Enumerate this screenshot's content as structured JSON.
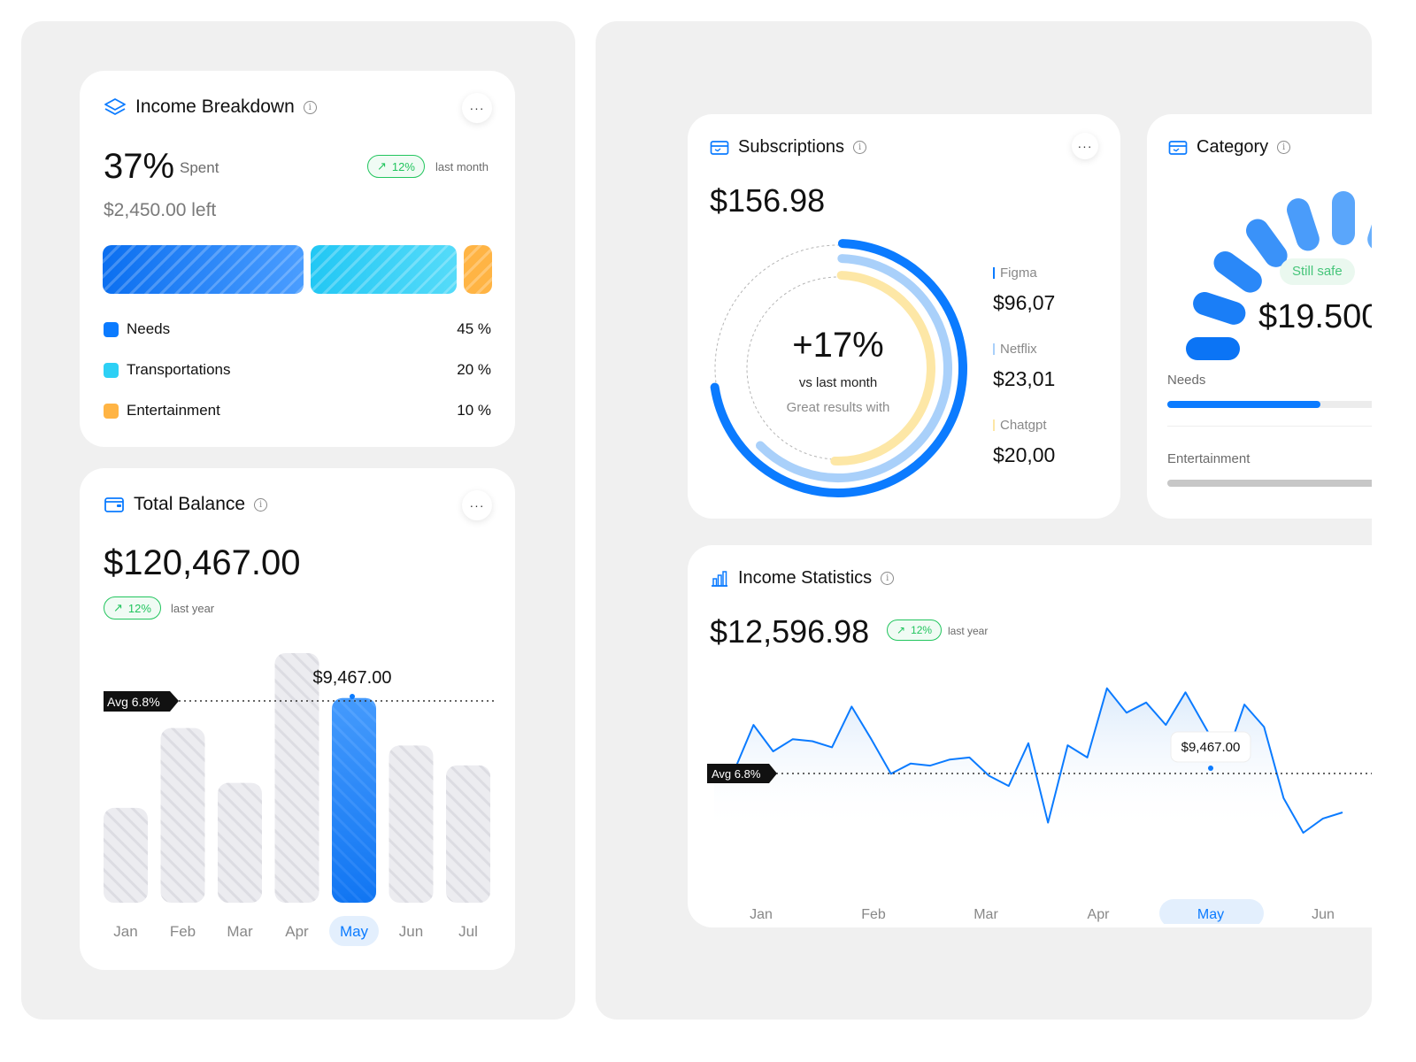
{
  "income_breakdown": {
    "title": "Income Breakdown",
    "percent": "37%",
    "percent_label": "Spent",
    "change": "12%",
    "change_period": "last month",
    "left_amount": "$2,450.00 left",
    "legend": [
      {
        "label": "Needs",
        "value": "45 %",
        "color": "#0b7bff"
      },
      {
        "label": "Transportations",
        "value": "20 %",
        "color": "#2dd0f5"
      },
      {
        "label": "Entertainment",
        "value": "10 %",
        "color": "#ffb444"
      }
    ]
  },
  "total_balance": {
    "title": "Total Balance",
    "amount": "$120,467.00",
    "change": "12%",
    "change_period": "last year",
    "avg_label": "Avg 6.8%",
    "tooltip": "$9,467.00",
    "chart_data": {
      "type": "bar",
      "categories": [
        "Jan",
        "Feb",
        "Mar",
        "Apr",
        "May",
        "Jun",
        "Jul"
      ],
      "values": [
        3.8,
        7.0,
        4.8,
        10.0,
        8.2,
        6.3,
        5.5
      ],
      "highlight": "May",
      "ylim": [
        0,
        10
      ]
    }
  },
  "subscriptions": {
    "title": "Subscriptions",
    "amount": "$156.98",
    "center_value": "+17%",
    "center_label": "vs last month",
    "center_sub": "Great results with",
    "items": [
      {
        "name": "Figma",
        "amount": "$96,07",
        "color": "#0b7bff"
      },
      {
        "name": "Netflix",
        "amount": "$23,01",
        "color": "#a9d0fa"
      },
      {
        "name": "Chatgpt",
        "amount": "$20,00",
        "color": "#fde7a6"
      }
    ],
    "rings": [
      {
        "color": "#0b7bff",
        "fraction": 0.72
      },
      {
        "color": "#a9d0fa",
        "fraction": 0.62
      },
      {
        "color": "#fde7a6",
        "fraction": 0.5
      }
    ]
  },
  "category": {
    "title": "Category",
    "badge": "Still safe",
    "amount": "$19.500",
    "rows": [
      {
        "label": "Needs",
        "fraction": 0.72,
        "color": "#0b7bff"
      },
      {
        "label": "Entertainment",
        "fraction": 1.0,
        "color": "#c7c7c7"
      }
    ]
  },
  "income_statistics": {
    "title": "Income Statistics",
    "amount": "$12,596.98",
    "change": "12%",
    "change_period": "last year",
    "avg_label": "Avg 6.8%",
    "tooltip": "$9,467.00",
    "months": [
      "Jan",
      "Feb",
      "Mar",
      "Apr",
      "May",
      "Jun"
    ],
    "highlight": "May",
    "chart_data": {
      "type": "area",
      "values": [
        4.2,
        4.0,
        6.3,
        5.0,
        5.6,
        5.5,
        5.2,
        7.2,
        5.6,
        3.9,
        4.4,
        4.3,
        4.6,
        4.7,
        3.8,
        3.3,
        5.4,
        1.5,
        5.3,
        4.7,
        8.1,
        6.9,
        7.4,
        6.3,
        7.9,
        6.2,
        4.5,
        7.3,
        6.2,
        2.7,
        1.0,
        1.7,
        2.0
      ]
    }
  }
}
